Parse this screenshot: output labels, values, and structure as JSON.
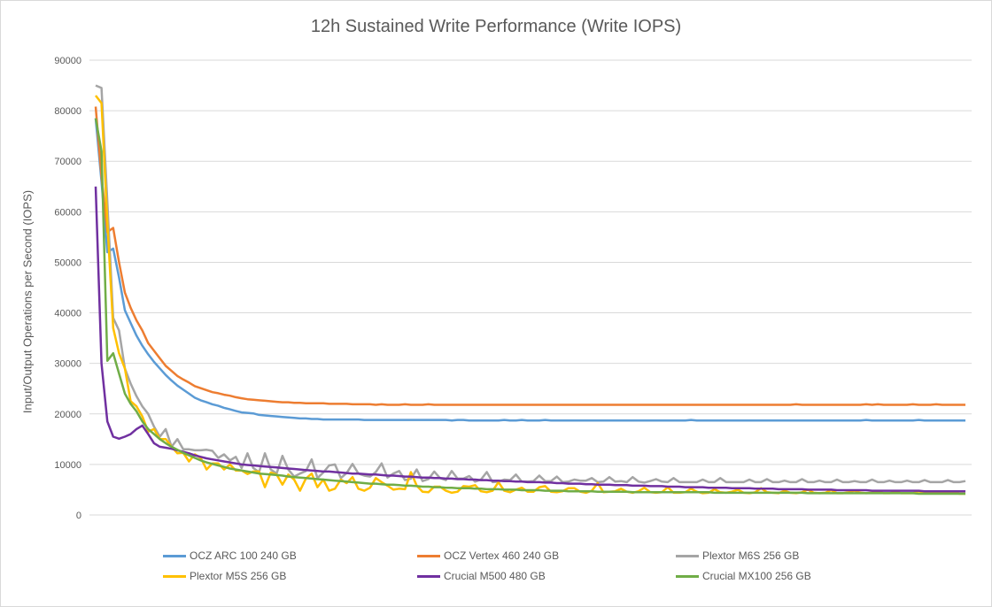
{
  "chart_data": {
    "type": "line",
    "title": "12h Sustained Write Performance (Write IOPS)",
    "xlabel": "",
    "ylabel": "Input/Output Operations per Second (IOPS)",
    "ylim": [
      0,
      90000
    ],
    "yticks": [
      "0",
      "10000",
      "20000",
      "30000",
      "40000",
      "50000",
      "60000",
      "70000",
      "80000",
      "90000"
    ],
    "grid": true,
    "legend_position": "bottom",
    "series": [
      {
        "name": "OCZ ARC 100 240 GB",
        "color": "#5B9BD5",
        "values": [
          78500,
          66000,
          52000,
          52700,
          47000,
          40500,
          38000,
          35500,
          33500,
          31800,
          30300,
          29000,
          27700,
          26600,
          25600,
          24800,
          24000,
          23200,
          22700,
          22300,
          21900,
          21600,
          21200,
          20900,
          20600,
          20300,
          20200,
          20100,
          19800,
          19700,
          19600,
          19500,
          19400,
          19300,
          19200,
          19100,
          19100,
          19000,
          19000,
          18900,
          18900,
          18900,
          18900,
          18900,
          18900,
          18900,
          18800,
          18800,
          18800,
          18800,
          18800,
          18800,
          18800,
          18800,
          18800,
          18800,
          18800,
          18800,
          18800,
          18800,
          18800,
          18700,
          18800,
          18800,
          18700,
          18700,
          18700,
          18700,
          18700,
          18700,
          18800,
          18700,
          18700,
          18800,
          18700,
          18700,
          18700,
          18800,
          18700,
          18700,
          18700,
          18700,
          18700,
          18700,
          18700,
          18700,
          18700,
          18700,
          18700,
          18700,
          18700,
          18700,
          18700,
          18700,
          18700,
          18700,
          18700,
          18700,
          18700,
          18700,
          18700,
          18700,
          18800,
          18700,
          18700,
          18700,
          18700,
          18700,
          18700,
          18700,
          18700,
          18700,
          18700,
          18700,
          18700,
          18700,
          18700,
          18700,
          18700,
          18700,
          18700,
          18700,
          18700,
          18700,
          18700,
          18700,
          18700,
          18700,
          18700,
          18700,
          18700,
          18700,
          18800,
          18700,
          18700,
          18700,
          18700,
          18700,
          18700,
          18700,
          18700,
          18800,
          18700,
          18700,
          18700,
          18700,
          18700,
          18700,
          18700,
          18700
        ]
      },
      {
        "name": "OCZ Vertex 460 240 GB",
        "color": "#ED7D31",
        "values": [
          80800,
          67000,
          56000,
          56800,
          50000,
          44000,
          41000,
          38500,
          36500,
          34000,
          32500,
          31000,
          29500,
          28500,
          27500,
          26800,
          26200,
          25500,
          25100,
          24700,
          24300,
          24100,
          23800,
          23600,
          23300,
          23100,
          22900,
          22800,
          22700,
          22600,
          22500,
          22400,
          22300,
          22300,
          22200,
          22200,
          22100,
          22100,
          22100,
          22100,
          22000,
          22000,
          22000,
          22000,
          21900,
          21900,
          21900,
          21900,
          21800,
          21900,
          21800,
          21800,
          21800,
          21900,
          21800,
          21800,
          21800,
          21900,
          21800,
          21800,
          21800,
          21800,
          21800,
          21800,
          21800,
          21800,
          21800,
          21800,
          21800,
          21800,
          21800,
          21800,
          21800,
          21800,
          21800,
          21800,
          21800,
          21800,
          21800,
          21800,
          21800,
          21800,
          21800,
          21800,
          21800,
          21800,
          21800,
          21800,
          21800,
          21800,
          21800,
          21800,
          21800,
          21800,
          21800,
          21800,
          21800,
          21800,
          21800,
          21800,
          21800,
          21800,
          21800,
          21800,
          21800,
          21800,
          21800,
          21800,
          21800,
          21800,
          21800,
          21800,
          21800,
          21800,
          21800,
          21800,
          21800,
          21800,
          21800,
          21800,
          21900,
          21800,
          21800,
          21800,
          21800,
          21800,
          21800,
          21800,
          21800,
          21800,
          21800,
          21800,
          21900,
          21800,
          21900,
          21800,
          21800,
          21800,
          21800,
          21800,
          21900,
          21800,
          21800,
          21800,
          21900,
          21800,
          21800,
          21800,
          21800,
          21800
        ]
      },
      {
        "name": "Plextor M6S 256 GB",
        "color": "#A5A5A5",
        "values": [
          85000,
          84500,
          62000,
          39000,
          36500,
          29000,
          26000,
          23500,
          21500,
          20000,
          17500,
          15500,
          17000,
          13500,
          15000,
          13000,
          13000,
          12800,
          12800,
          12900,
          12700,
          11300,
          12000,
          10800,
          11500,
          9300,
          12200,
          9300,
          8500,
          12200,
          9000,
          8200,
          11700,
          9000,
          7600,
          8200,
          8700,
          11000,
          7300,
          8400,
          9800,
          10000,
          7300,
          8300,
          10100,
          8200,
          7800,
          7600,
          8500,
          10200,
          7400,
          8200,
          8700,
          6900,
          7200,
          9000,
          6700,
          7100,
          8600,
          7300,
          6900,
          8700,
          7200,
          7200,
          7700,
          6600,
          7000,
          8500,
          6500,
          6600,
          7000,
          6900,
          8000,
          6600,
          6600,
          6700,
          7800,
          6700,
          6700,
          7600,
          6500,
          6600,
          7000,
          6800,
          6800,
          7300,
          6500,
          6600,
          7500,
          6600,
          6700,
          6500,
          7500,
          6600,
          6400,
          6700,
          7100,
          6600,
          6500,
          7300,
          6500,
          6500,
          6500,
          6500,
          7000,
          6500,
          6500,
          7300,
          6500,
          6500,
          6500,
          6500,
          7000,
          6500,
          6500,
          7100,
          6500,
          6500,
          6800,
          6500,
          6500,
          7100,
          6500,
          6500,
          6800,
          6500,
          6500,
          7000,
          6500,
          6500,
          6700,
          6500,
          6500,
          7000,
          6500,
          6500,
          6800,
          6500,
          6500,
          6800,
          6500,
          6500,
          6900,
          6500,
          6500,
          6500,
          6900,
          6500,
          6500,
          6700
        ]
      },
      {
        "name": "Plextor M5S 256 GB",
        "color": "#FFC000",
        "values": [
          83000,
          81500,
          58000,
          37000,
          32000,
          29000,
          22500,
          21500,
          19500,
          16500,
          17000,
          15000,
          15000,
          13500,
          12200,
          12300,
          10600,
          12000,
          11300,
          9000,
          10200,
          10200,
          9000,
          10000,
          8800,
          8800,
          8100,
          8600,
          8600,
          5500,
          8400,
          8000,
          6000,
          8000,
          7000,
          4800,
          7200,
          8200,
          5500,
          7000,
          4800,
          5200,
          7000,
          6300,
          7500,
          5200,
          4800,
          5400,
          7300,
          6500,
          5800,
          5000,
          5200,
          5100,
          8500,
          5800,
          4600,
          4500,
          5600,
          5600,
          4800,
          4400,
          4600,
          5700,
          5600,
          5900,
          4700,
          4500,
          4800,
          6500,
          4800,
          4500,
          5000,
          5400,
          4600,
          4600,
          5500,
          5700,
          4600,
          4500,
          4700,
          5300,
          5300,
          4600,
          4400,
          4800,
          6300,
          4500,
          4600,
          4700,
          5200,
          4600,
          4400,
          4700,
          5400,
          4500,
          4400,
          4500,
          5500,
          4400,
          4400,
          4500,
          5200,
          4600,
          4300,
          4400,
          5100,
          4500,
          4400,
          4600,
          5000,
          4400,
          4300,
          4500,
          5300,
          4500,
          4400,
          4300,
          4800,
          4400,
          4300,
          4500,
          5000,
          4400,
          4300,
          4400,
          4900,
          4300,
          4300,
          4500,
          4800,
          4400,
          4300,
          4400,
          4700,
          4300,
          4300,
          4600,
          4300,
          4300,
          4300,
          4700,
          4300,
          4300,
          4400,
          4300,
          4300,
          4400,
          4200,
          4200
        ]
      },
      {
        "name": "Crucial M500 480 GB",
        "color": "#7030A0",
        "values": [
          65000,
          30000,
          18500,
          15500,
          15100,
          15500,
          16000,
          17000,
          17700,
          16000,
          14200,
          13500,
          13300,
          13100,
          12800,
          12500,
          12200,
          11800,
          11500,
          11200,
          11000,
          10800,
          10600,
          10400,
          10200,
          10000,
          9900,
          9800,
          9700,
          9600,
          9500,
          9400,
          9300,
          9200,
          9100,
          9000,
          8900,
          8800,
          8700,
          8600,
          8600,
          8500,
          8400,
          8300,
          8200,
          8200,
          8100,
          8000,
          8000,
          7900,
          7800,
          7800,
          7700,
          7600,
          7600,
          7500,
          7400,
          7400,
          7300,
          7300,
          7200,
          7200,
          7100,
          7100,
          7000,
          7000,
          6900,
          6900,
          6800,
          6800,
          6700,
          6700,
          6600,
          6600,
          6500,
          6500,
          6500,
          6400,
          6400,
          6300,
          6300,
          6200,
          6200,
          6200,
          6100,
          6100,
          6000,
          6000,
          6000,
          5900,
          5900,
          5900,
          5800,
          5800,
          5800,
          5700,
          5700,
          5700,
          5600,
          5600,
          5600,
          5500,
          5500,
          5500,
          5500,
          5400,
          5400,
          5400,
          5400,
          5300,
          5300,
          5300,
          5300,
          5200,
          5200,
          5200,
          5200,
          5100,
          5100,
          5100,
          5100,
          5100,
          5000,
          5000,
          5000,
          5000,
          5000,
          4900,
          4900,
          4900,
          4900,
          4900,
          4900,
          4800,
          4800,
          4800,
          4800,
          4800,
          4800,
          4800,
          4800,
          4800,
          4700,
          4700,
          4700,
          4700,
          4700,
          4700,
          4700,
          4700
        ]
      },
      {
        "name": "Crucial MX100 256 GB",
        "color": "#70AD47",
        "values": [
          78500,
          72000,
          30500,
          32000,
          28000,
          24000,
          22000,
          20500,
          18500,
          17000,
          16000,
          15000,
          14200,
          13500,
          12900,
          12300,
          11800,
          11300,
          10800,
          10400,
          10100,
          9800,
          9500,
          9200,
          9000,
          8800,
          8600,
          8400,
          8200,
          8100,
          8000,
          7900,
          7800,
          7600,
          7500,
          7400,
          7300,
          7200,
          7100,
          7000,
          6900,
          6800,
          6700,
          6600,
          6500,
          6400,
          6300,
          6200,
          6200,
          6100,
          6000,
          6000,
          5900,
          5800,
          5800,
          5700,
          5600,
          5600,
          5500,
          5500,
          5400,
          5400,
          5300,
          5300,
          5300,
          5200,
          5200,
          5100,
          5100,
          5100,
          5000,
          5000,
          5000,
          4900,
          4900,
          4900,
          4900,
          4800,
          4800,
          4800,
          4800,
          4700,
          4700,
          4700,
          4700,
          4700,
          4600,
          4600,
          4600,
          4600,
          4600,
          4600,
          4500,
          4500,
          4500,
          4500,
          4500,
          4500,
          4500,
          4500,
          4500,
          4500,
          4500,
          4500,
          4500,
          4500,
          4400,
          4400,
          4400,
          4400,
          4400,
          4400,
          4400,
          4400,
          4400,
          4400,
          4400,
          4400,
          4400,
          4400,
          4400,
          4400,
          4300,
          4300,
          4300,
          4300,
          4300,
          4300,
          4300,
          4300,
          4300,
          4300,
          4300,
          4300,
          4300,
          4300,
          4300,
          4300,
          4300,
          4300,
          4300,
          4200,
          4200,
          4200,
          4200,
          4200,
          4200,
          4200,
          4200,
          4200
        ]
      }
    ]
  }
}
